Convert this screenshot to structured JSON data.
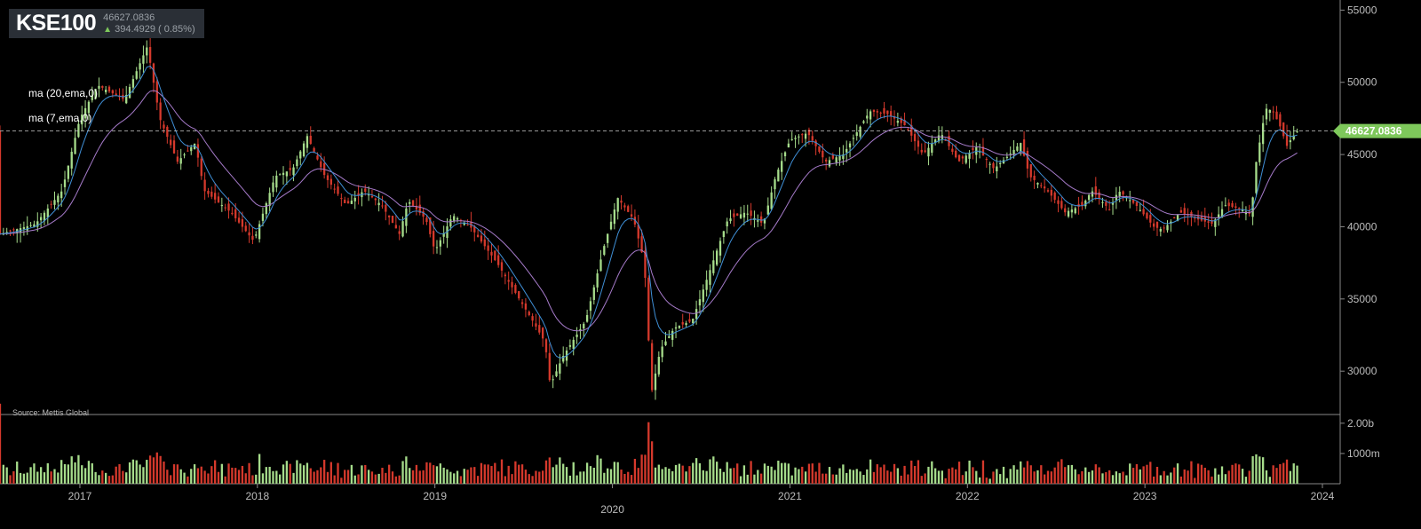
{
  "header": {
    "ticker": "KSE100",
    "last_price": "46627.0836",
    "change_text": "394.4929 ( 0.85%)",
    "change_direction_icon": "arrow-up-icon"
  },
  "indicators": [
    {
      "label": "ma (20,ema,0)"
    },
    {
      "label": "ma (7,ema,0)"
    }
  ],
  "source_label": "Source: Mettis Global",
  "last_price_marker": "46627.0836",
  "colors": {
    "up": "#a6dc8b",
    "down": "#d5392c",
    "ma_fast": "#3f8fd6",
    "ma_slow": "#a57ac9",
    "grid": "#888888",
    "axis_text": "#bbbbbb",
    "price_line": "#cccccc",
    "last_marker": "#7ec85b"
  },
  "chart_data": {
    "type": "candlestick",
    "title": "KSE100",
    "x_axis": {
      "ticks": [
        "2017",
        "2018",
        "2019",
        "2020",
        "2021",
        "2022",
        "2023",
        "2024"
      ],
      "range": [
        2016.55,
        2024.1
      ]
    },
    "y_axis": {
      "ticks": [
        30000,
        35000,
        40000,
        45000,
        50000,
        55000
      ],
      "range": [
        27000,
        55700
      ],
      "position": "right"
    },
    "volume_axis": {
      "ticks": [
        "1000m",
        "2.00b"
      ],
      "range_millions": [
        0,
        2200
      ]
    },
    "last_price": 46627.0836,
    "price_anchors": [
      [
        2016.55,
        39500
      ],
      [
        2016.75,
        40200
      ],
      [
        2016.9,
        42500
      ],
      [
        2017.0,
        47500
      ],
      [
        2017.1,
        49800
      ],
      [
        2017.25,
        48800
      ],
      [
        2017.38,
        52500
      ],
      [
        2017.45,
        47500
      ],
      [
        2017.55,
        44500
      ],
      [
        2017.65,
        45800
      ],
      [
        2017.7,
        42500
      ],
      [
        2017.85,
        41000
      ],
      [
        2017.98,
        39000
      ],
      [
        2018.1,
        43500
      ],
      [
        2018.2,
        44000
      ],
      [
        2018.28,
        46300
      ],
      [
        2018.38,
        43500
      ],
      [
        2018.5,
        41500
      ],
      [
        2018.6,
        42500
      ],
      [
        2018.7,
        41500
      ],
      [
        2018.8,
        39500
      ],
      [
        2018.85,
        41800
      ],
      [
        2018.95,
        40500
      ],
      [
        2019.0,
        38300
      ],
      [
        2019.1,
        40800
      ],
      [
        2019.2,
        40000
      ],
      [
        2019.35,
        37500
      ],
      [
        2019.45,
        35500
      ],
      [
        2019.55,
        33500
      ],
      [
        2019.62,
        32000
      ],
      [
        2019.65,
        29000
      ],
      [
        2019.72,
        31000
      ],
      [
        2019.85,
        33500
      ],
      [
        2019.95,
        38500
      ],
      [
        2020.03,
        42000
      ],
      [
        2020.12,
        40500
      ],
      [
        2020.18,
        37500
      ],
      [
        2020.22,
        28500
      ],
      [
        2020.27,
        31500
      ],
      [
        2020.35,
        33000
      ],
      [
        2020.45,
        33500
      ],
      [
        2020.55,
        37000
      ],
      [
        2020.65,
        40500
      ],
      [
        2020.75,
        41000
      ],
      [
        2020.85,
        40200
      ],
      [
        2020.92,
        43500
      ],
      [
        2021.0,
        46000
      ],
      [
        2021.1,
        46500
      ],
      [
        2021.2,
        44500
      ],
      [
        2021.3,
        45000
      ],
      [
        2021.4,
        47000
      ],
      [
        2021.45,
        48000
      ],
      [
        2021.55,
        47800
      ],
      [
        2021.65,
        47000
      ],
      [
        2021.75,
        45000
      ],
      [
        2021.85,
        46500
      ],
      [
        2021.95,
        44500
      ],
      [
        2022.05,
        45500
      ],
      [
        2022.15,
        44000
      ],
      [
        2022.22,
        44800
      ],
      [
        2022.3,
        45800
      ],
      [
        2022.35,
        43500
      ],
      [
        2022.45,
        42500
      ],
      [
        2022.55,
        41000
      ],
      [
        2022.65,
        41500
      ],
      [
        2022.7,
        42500
      ],
      [
        2022.8,
        41200
      ],
      [
        2022.85,
        42500
      ],
      [
        2022.95,
        41500
      ],
      [
        2023.05,
        40000
      ],
      [
        2023.1,
        39800
      ],
      [
        2023.2,
        41000
      ],
      [
        2023.3,
        40500
      ],
      [
        2023.38,
        40200
      ],
      [
        2023.45,
        41500
      ],
      [
        2023.55,
        41200
      ],
      [
        2023.6,
        40800
      ],
      [
        2023.62,
        44000
      ],
      [
        2023.68,
        48200
      ],
      [
        2023.72,
        48000
      ],
      [
        2023.76,
        47000
      ],
      [
        2023.8,
        45600
      ],
      [
        2023.83,
        46200
      ],
      [
        2023.86,
        46627
      ]
    ]
  }
}
